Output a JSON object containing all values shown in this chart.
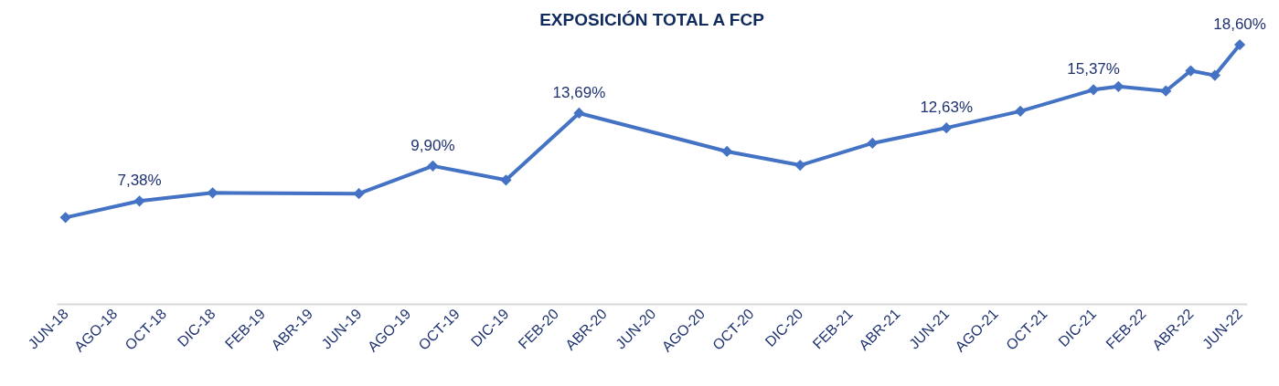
{
  "chart_data": {
    "type": "line",
    "title": "EXPOSICIÓN TOTAL A FCP",
    "x": [
      "2018-06",
      "2018-09",
      "2018-12",
      "2019-06",
      "2019-09",
      "2019-12",
      "2020-03",
      "2020-09",
      "2020-12",
      "2021-03",
      "2021-06",
      "2021-09",
      "2021-12",
      "2022-01",
      "2022-03",
      "2022-04",
      "2022-05",
      "2022-06"
    ],
    "series": [
      {
        "color": "#4472c4",
        "values": [
          6.2,
          7.38,
          7.97,
          7.91,
          9.9,
          8.89,
          13.69,
          10.94,
          9.95,
          11.53,
          12.63,
          13.83,
          15.37,
          15.6,
          15.28,
          16.73,
          16.4,
          18.6
        ],
        "value_labels": [
          null,
          "7,38%",
          null,
          null,
          "9,90%",
          null,
          "13,69%",
          null,
          null,
          null,
          "12,63%",
          null,
          "15,37%",
          null,
          null,
          null,
          null,
          "18,60%"
        ]
      }
    ],
    "xlim": [
      "2018-05-21",
      "2022-06-10"
    ],
    "xticks": [
      {
        "value": "2018-06",
        "label": "JUN-18"
      },
      {
        "value": "2018-08",
        "label": "AGO-18"
      },
      {
        "value": "2018-10",
        "label": "OCT-18"
      },
      {
        "value": "2018-12",
        "label": "DIC-18"
      },
      {
        "value": "2019-02",
        "label": "FEB-19"
      },
      {
        "value": "2019-04",
        "label": "ABR-19"
      },
      {
        "value": "2019-06",
        "label": "JUN-19"
      },
      {
        "value": "2019-08",
        "label": "AGO-19"
      },
      {
        "value": "2019-10",
        "label": "OCT-19"
      },
      {
        "value": "2019-12",
        "label": "DIC-19"
      },
      {
        "value": "2020-02",
        "label": "FEB-20"
      },
      {
        "value": "2020-04",
        "label": "ABR-20"
      },
      {
        "value": "2020-06",
        "label": "JUN-20"
      },
      {
        "value": "2020-08",
        "label": "AGO-20"
      },
      {
        "value": "2020-10",
        "label": "OCT-20"
      },
      {
        "value": "2020-12",
        "label": "DIC-20"
      },
      {
        "value": "2021-02",
        "label": "FEB-21"
      },
      {
        "value": "2021-04",
        "label": "ABR-21"
      },
      {
        "value": "2021-06",
        "label": "JUN-21"
      },
      {
        "value": "2021-08",
        "label": "AGO-21"
      },
      {
        "value": "2021-10",
        "label": "OCT-21"
      },
      {
        "value": "2021-12",
        "label": "DIC-21"
      },
      {
        "value": "2022-02",
        "label": "FEB-22"
      },
      {
        "value": "2022-04",
        "label": "ABR-22"
      },
      {
        "value": "2022-06",
        "label": "JUN-22"
      }
    ],
    "tick_labels": "x",
    "grid": false,
    "marker": "diamond",
    "line_style": "solid"
  }
}
